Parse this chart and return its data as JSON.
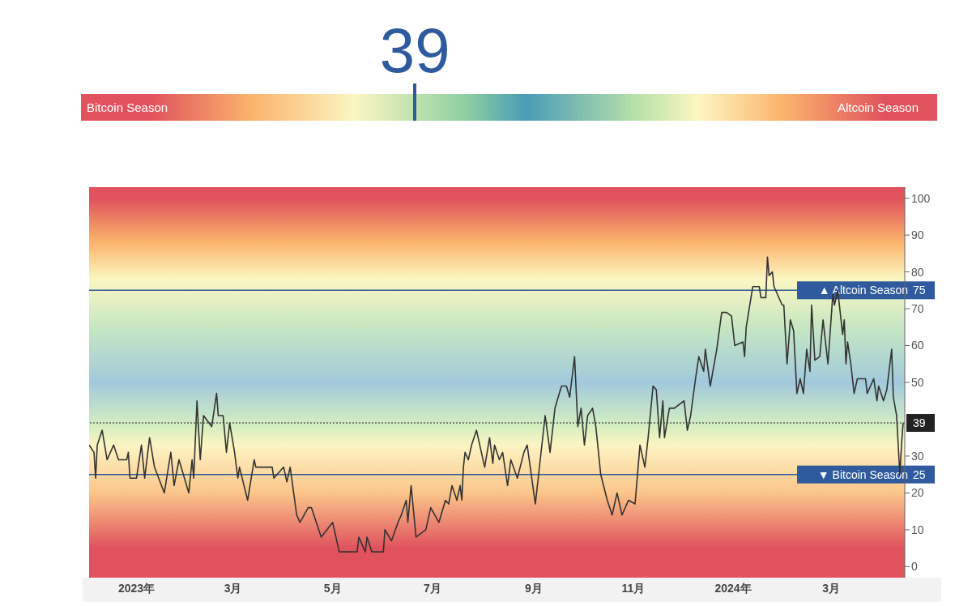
{
  "chart_data": {
    "type": "line",
    "annotations": [
      "39",
      "Bitcoin Season",
      "Altcoin Season",
      {
        "text": "75",
        "x": "2024-04-15",
        "y": 75
      },
      {
        "text": "39",
        "x": "2024-04-15",
        "y": 39
      },
      {
        "text": "25",
        "x": "2024-04-15",
        "y": 25
      }
    ],
    "x": [
      "2022-12-03",
      "2022-12-06",
      "2022-12-07",
      "2022-12-08",
      "2022-12-11",
      "2022-12-14",
      "2022-12-18",
      "2022-12-21",
      "2022-12-26",
      "2022-12-27",
      "2022-12-28",
      "2023-01-01",
      "2023-01-04",
      "2023-01-06",
      "2023-01-09",
      "2023-01-12",
      "2023-01-18",
      "2023-01-22",
      "2023-01-24",
      "2023-01-27",
      "2023-02-02",
      "2023-02-04",
      "2023-02-05",
      "2023-02-07",
      "2023-02-09",
      "2023-02-11",
      "2023-02-16",
      "2023-02-19",
      "2023-02-20",
      "2023-02-23",
      "2023-02-25",
      "2023-02-27",
      "2023-03-02",
      "2023-03-04",
      "2023-03-05",
      "2023-03-10",
      "2023-03-14",
      "2023-03-15",
      "2023-03-25",
      "2023-03-26",
      "2023-04-01",
      "2023-04-03",
      "2023-04-05",
      "2023-04-09",
      "2023-04-11",
      "2023-04-16",
      "2023-04-18",
      "2023-04-24",
      "2023-05-01",
      "2023-05-05",
      "2023-05-16",
      "2023-05-17",
      "2023-05-21",
      "2023-05-22",
      "2023-05-25",
      "2023-06-01",
      "2023-06-02",
      "2023-06-06",
      "2023-06-10",
      "2023-06-12",
      "2023-06-15",
      "2023-06-16",
      "2023-06-18",
      "2023-06-21",
      "2023-06-27",
      "2023-06-30",
      "2023-07-05",
      "2023-07-09",
      "2023-07-11",
      "2023-07-13",
      "2023-07-16",
      "2023-07-18",
      "2023-07-19",
      "2023-07-20",
      "2023-07-21",
      "2023-07-23",
      "2023-07-25",
      "2023-07-28",
      "2023-07-30",
      "2023-08-02",
      "2023-08-05",
      "2023-08-07",
      "2023-08-08",
      "2023-08-11",
      "2023-08-13",
      "2023-08-16",
      "2023-08-18",
      "2023-08-22",
      "2023-08-26",
      "2023-08-28",
      "2023-09-02",
      "2023-09-05",
      "2023-09-08",
      "2023-09-11",
      "2023-09-14",
      "2023-09-18",
      "2023-09-21",
      "2023-09-23",
      "2023-09-26",
      "2023-09-28",
      "2023-09-30",
      "2023-10-02",
      "2023-10-04",
      "2023-10-07",
      "2023-10-09",
      "2023-10-12",
      "2023-10-16",
      "2023-10-19",
      "2023-10-22",
      "2023-10-25",
      "2023-10-29",
      "2023-11-02",
      "2023-11-05",
      "2023-11-08",
      "2023-11-10",
      "2023-11-13",
      "2023-11-15",
      "2023-11-17",
      "2023-11-19",
      "2023-11-20",
      "2023-11-23",
      "2023-11-26",
      "2023-12-02",
      "2023-12-04",
      "2023-12-06",
      "2023-12-09",
      "2023-12-11",
      "2023-12-14",
      "2023-12-15",
      "2023-12-18",
      "2023-12-22",
      "2023-12-25",
      "2023-12-28",
      "2023-12-31",
      "2024-01-02",
      "2024-01-07",
      "2024-01-08",
      "2024-01-09",
      "2024-01-13",
      "2024-01-17",
      "2024-01-18",
      "2024-01-21",
      "2024-01-22",
      "2024-01-23",
      "2024-01-25",
      "2024-01-26",
      "2024-01-31",
      "2024-02-01",
      "2024-02-03",
      "2024-02-05",
      "2024-02-07",
      "2024-02-09",
      "2024-02-11",
      "2024-02-13",
      "2024-02-15",
      "2024-02-17",
      "2024-02-18",
      "2024-02-20",
      "2024-02-23",
      "2024-02-25",
      "2024-02-28",
      "2024-03-02",
      "2024-03-03",
      "2024-03-05",
      "2024-03-08",
      "2024-03-09",
      "2024-03-10",
      "2024-03-11",
      "2024-03-13",
      "2024-03-15",
      "2024-03-17",
      "2024-03-22",
      "2024-03-23",
      "2024-03-27",
      "2024-03-29",
      "2024-03-30",
      "2024-04-02",
      "2024-04-04",
      "2024-04-07",
      "2024-04-08",
      "2024-04-10",
      "2024-04-12",
      "2024-04-13",
      "2024-04-14"
    ],
    "series": [
      {
        "color": "#333333",
        "values": [
          33,
          31,
          24,
          33,
          37,
          29,
          33,
          29,
          29,
          31,
          24,
          24,
          33,
          24,
          35,
          27,
          20,
          31,
          22,
          29,
          20,
          29,
          24,
          45,
          29,
          41,
          38,
          47,
          41,
          41,
          31,
          39,
          31,
          24,
          27,
          18,
          29,
          27,
          27,
          24,
          27,
          23,
          27,
          14,
          12,
          16,
          16,
          8,
          12,
          4,
          4,
          8,
          4,
          8,
          4,
          4,
          10,
          7,
          12,
          14,
          18,
          12,
          22,
          8,
          10,
          16,
          12,
          18,
          17,
          22,
          18,
          22,
          18,
          27,
          31,
          29,
          33,
          37,
          33,
          27,
          35,
          28,
          33,
          29,
          31,
          22,
          29,
          24,
          31,
          33,
          17,
          29,
          41,
          31,
          43,
          49,
          49,
          46,
          57,
          38,
          43,
          33,
          41,
          43,
          38,
          25,
          18,
          14,
          20,
          14,
          18,
          17,
          33,
          27,
          35,
          49,
          48,
          35,
          45,
          35,
          43,
          43,
          45,
          37,
          41,
          51,
          57,
          53,
          59,
          49,
          59,
          69,
          69,
          68,
          60,
          61,
          57,
          65,
          76,
          76,
          73,
          73,
          84,
          79,
          80,
          76,
          71,
          71,
          55,
          67,
          64,
          47,
          51,
          47,
          59,
          53,
          71,
          56,
          57,
          67,
          55,
          74,
          71,
          75,
          63,
          67,
          55,
          61,
          55,
          47,
          51,
          51,
          47,
          51,
          45,
          49,
          45,
          48,
          59,
          46,
          41,
          25,
          33,
          39
        ]
      }
    ],
    "xlim": [
      "2022-12-03",
      "2024-04-15"
    ],
    "xticks": [
      {
        "value": "2023-01-01",
        "label": "2023年"
      },
      {
        "value": "2023-03-01",
        "label": "3月"
      },
      {
        "value": "2023-05-01",
        "label": "5月"
      },
      {
        "value": "2023-07-01",
        "label": "7月"
      },
      {
        "value": "2023-09-01",
        "label": "9月"
      },
      {
        "value": "2023-11-01",
        "label": "11月"
      },
      {
        "value": "2024-01-01",
        "label": "2024年"
      },
      {
        "value": "2024-03-01",
        "label": "3月"
      }
    ],
    "ylim": [
      -3,
      103
    ],
    "yticks": [
      0,
      10,
      20,
      30,
      50,
      60,
      70,
      80,
      90,
      100
    ],
    "ref_lines": [
      {
        "axis": "y",
        "value": 75,
        "label": "▲ Altcoin Season",
        "color": "#2f5b9e",
        "line_style": "solid"
      },
      {
        "axis": "y",
        "value": 25,
        "label": "▼ Bitcoin Season",
        "color": "#2f5b9e",
        "line_style": "solid"
      },
      {
        "axis": "y",
        "value": 39,
        "label": null,
        "color": "#222222",
        "line_style": "dotted"
      }
    ],
    "grid": false,
    "legend": false,
    "marker": "none",
    "line_style": "solid"
  }
}
